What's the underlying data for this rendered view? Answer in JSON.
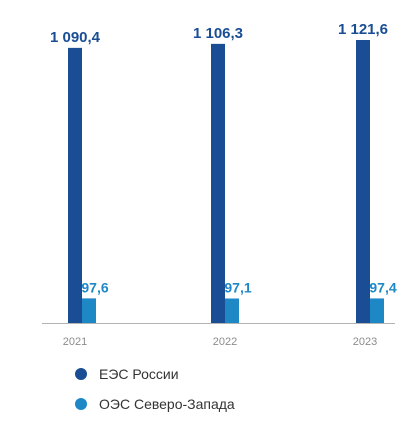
{
  "chart_data": {
    "type": "bar",
    "categories": [
      "2021",
      "2022",
      "2023"
    ],
    "series": [
      {
        "name": "ЕЭС России",
        "values": [
          1090.4,
          1106.3,
          1121.6
        ],
        "labels": [
          "1 090,4",
          "1 106,3",
          "1 121,6"
        ],
        "color": "#1a4e94"
      },
      {
        "name": "ОЭС Северо-Запада",
        "values": [
          97.6,
          97.1,
          97.4
        ],
        "labels": [
          "97,6",
          "97,1",
          "97,4"
        ],
        "color": "#1e88c7"
      }
    ],
    "ylim": [
      0,
      1121.6
    ],
    "grid": false,
    "legend_position": "bottom-left",
    "colors": {
      "tick_label": "#8c8c8c",
      "axis_line": "#b3b3b3"
    }
  }
}
